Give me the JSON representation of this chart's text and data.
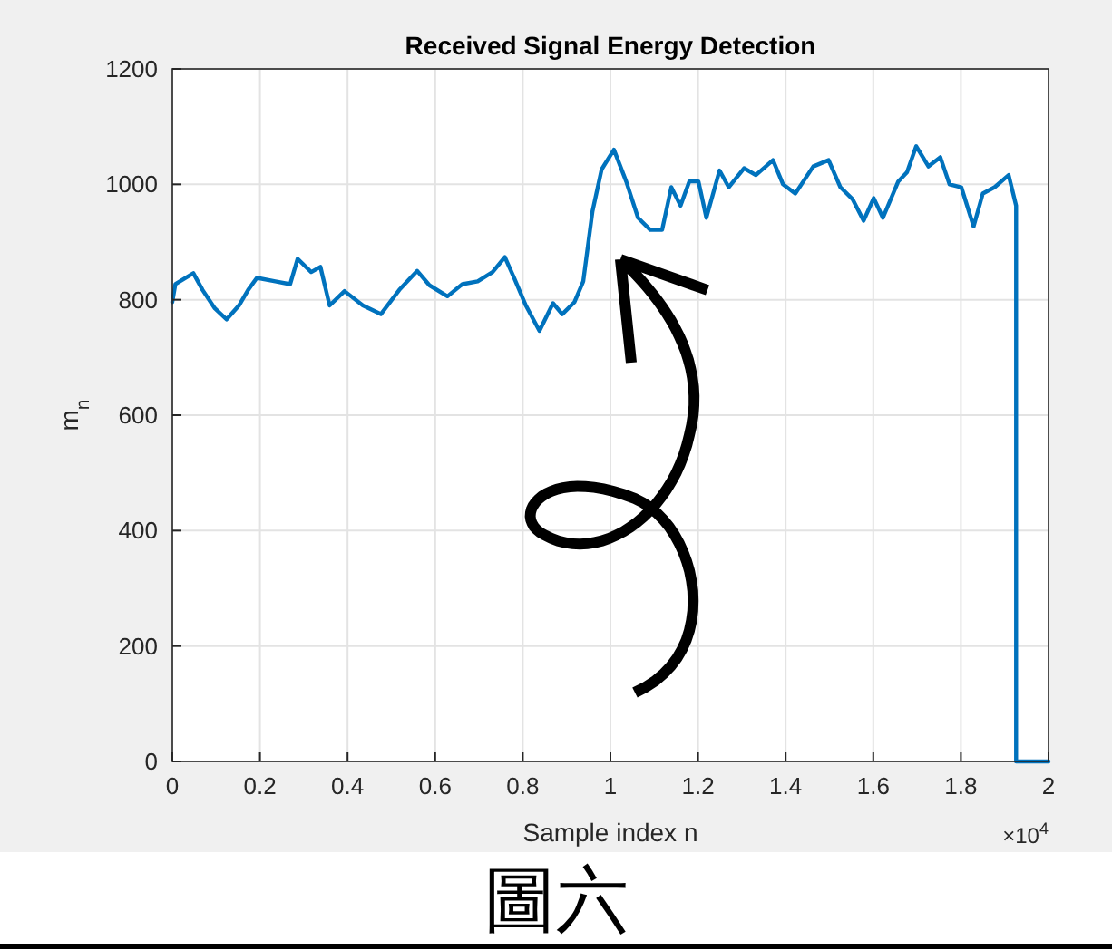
{
  "chart_data": {
    "type": "line",
    "title": "Received Signal Energy Detection",
    "xlabel": "Sample index n",
    "ylabel": "m$_{n}$",
    "annotations": [
      "×10$^{4}$",
      "圖六"
    ],
    "xlim": [
      0,
      2
    ],
    "xticks": [
      0,
      0.2,
      0.4,
      0.6,
      0.8,
      1,
      1.2,
      1.4,
      1.6,
      1.8,
      2
    ],
    "ylim": [
      0,
      1200
    ],
    "yticks": [
      0,
      200,
      400,
      600,
      800,
      1000,
      1200
    ],
    "grid": true,
    "series": [
      {
        "color": "#0072bd",
        "x": [
          0,
          0.007,
          0.048,
          0.069,
          0.097,
          0.124,
          0.152,
          0.173,
          0.193,
          0.235,
          0.269,
          0.286,
          0.317,
          0.338,
          0.359,
          0.393,
          0.435,
          0.476,
          0.518,
          0.559,
          0.587,
          0.628,
          0.662,
          0.697,
          0.731,
          0.759,
          0.78,
          0.807,
          0.838,
          0.869,
          0.89,
          0.918,
          0.938,
          0.959,
          0.98,
          1.008,
          1.036,
          1.063,
          1.091,
          1.118,
          1.139,
          1.16,
          1.18,
          1.201,
          1.219,
          1.249,
          1.27,
          1.305,
          1.332,
          1.371,
          1.394,
          1.422,
          1.463,
          1.498,
          1.525,
          1.553,
          1.578,
          1.601,
          1.622,
          1.657,
          1.677,
          1.698,
          1.726,
          1.753,
          1.774,
          1.801,
          1.829,
          1.85,
          1.877,
          1.909,
          1.926,
          1.926,
          2
        ],
        "values": [
          796,
          827,
          846,
          817,
          785,
          766,
          790,
          817,
          838,
          832,
          827,
          871,
          848,
          857,
          790,
          815,
          790,
          775,
          817,
          850,
          825,
          806,
          827,
          832,
          848,
          874,
          838,
          790,
          746,
          794,
          775,
          796,
          832,
          953,
          1026,
          1060,
          1005,
          942,
          921,
          921,
          995,
          963,
          1005,
          1005,
          942,
          1024,
          995,
          1028,
          1016,
          1042,
          1000,
          984,
          1031,
          1042,
          995,
          974,
          937,
          976,
          942,
          1005,
          1021,
          1066,
          1031,
          1047,
          1000,
          995,
          927,
          984,
          995,
          1016,
          963,
          0,
          0
        ]
      }
    ]
  }
}
